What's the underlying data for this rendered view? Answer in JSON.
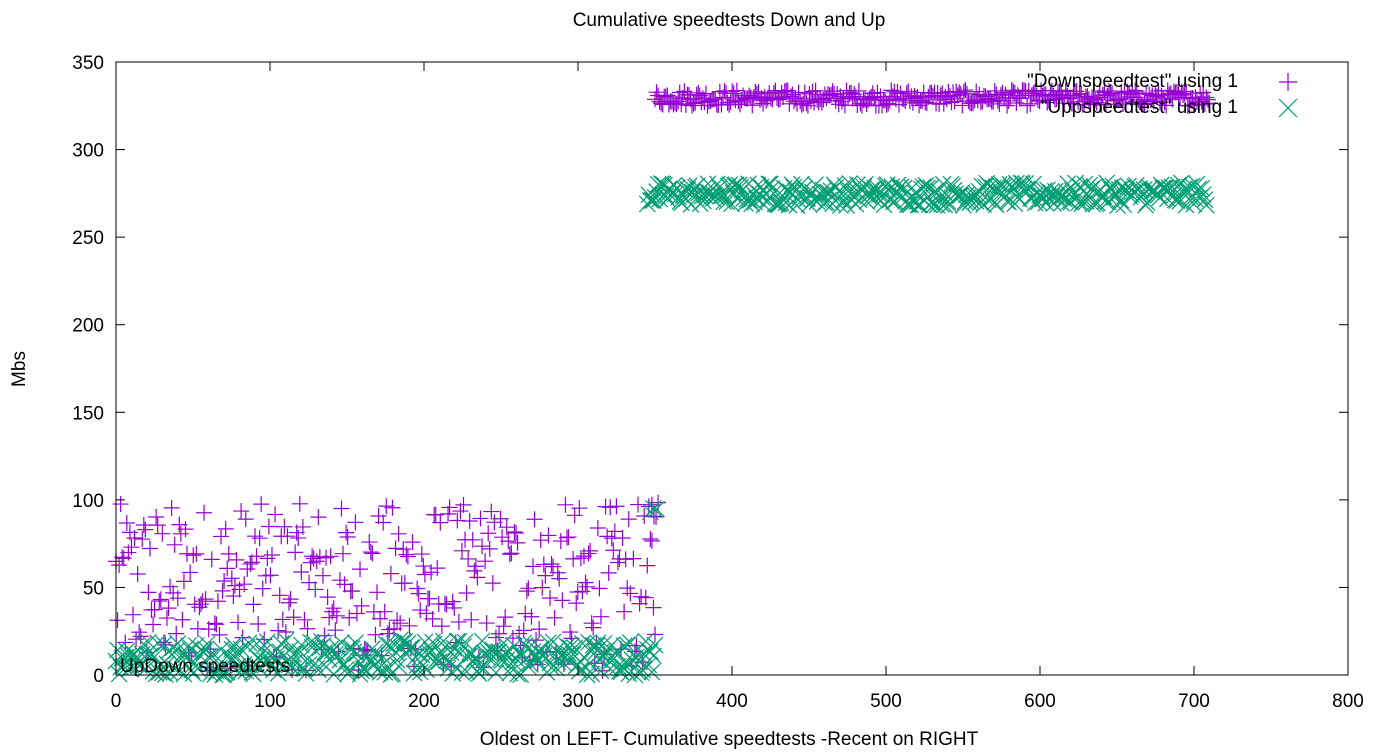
{
  "chart_data": {
    "type": "scatter",
    "title": "Cumulative speedtests Down and Up",
    "xlabel": "Oldest on LEFT- Cumulative speedtests -Recent on RIGHT",
    "ylabel": "Mbs",
    "xlim": [
      0,
      800
    ],
    "ylim": [
      0,
      350
    ],
    "x_ticks": [
      0,
      100,
      200,
      300,
      400,
      500,
      600,
      700,
      800
    ],
    "y_ticks": [
      0,
      50,
      100,
      150,
      200,
      250,
      300,
      350
    ],
    "grid": false,
    "legend_placement": "top-right",
    "annotation": "UpDown speedtests",
    "series": [
      {
        "name": "\"Downspeedtest\" using 1",
        "marker": "plus",
        "color": "#9400d3",
        "segments": [
          {
            "x_range": [
              0,
              350
            ],
            "y_min": 2,
            "y_max": 98,
            "count": 350
          },
          {
            "x_range": [
              348,
              352
            ],
            "y_min": 90,
            "y_max": 100,
            "count": 4
          },
          {
            "x_range": [
              350,
              710
            ],
            "y_min": 325,
            "y_max": 334,
            "count": 360
          }
        ]
      },
      {
        "name": "\"Uppspeedtest\" using 1",
        "marker": "cross",
        "color": "#009e73",
        "segments": [
          {
            "x_range": [
              0,
              350
            ],
            "y_min": 0,
            "y_max": 20,
            "count": 350
          },
          {
            "x_range": [
              347,
              351
            ],
            "y_min": 92,
            "y_max": 96,
            "count": 3
          },
          {
            "x_range": [
              345,
              708
            ],
            "y_min": 268,
            "y_max": 281,
            "count": 360
          }
        ]
      }
    ]
  }
}
